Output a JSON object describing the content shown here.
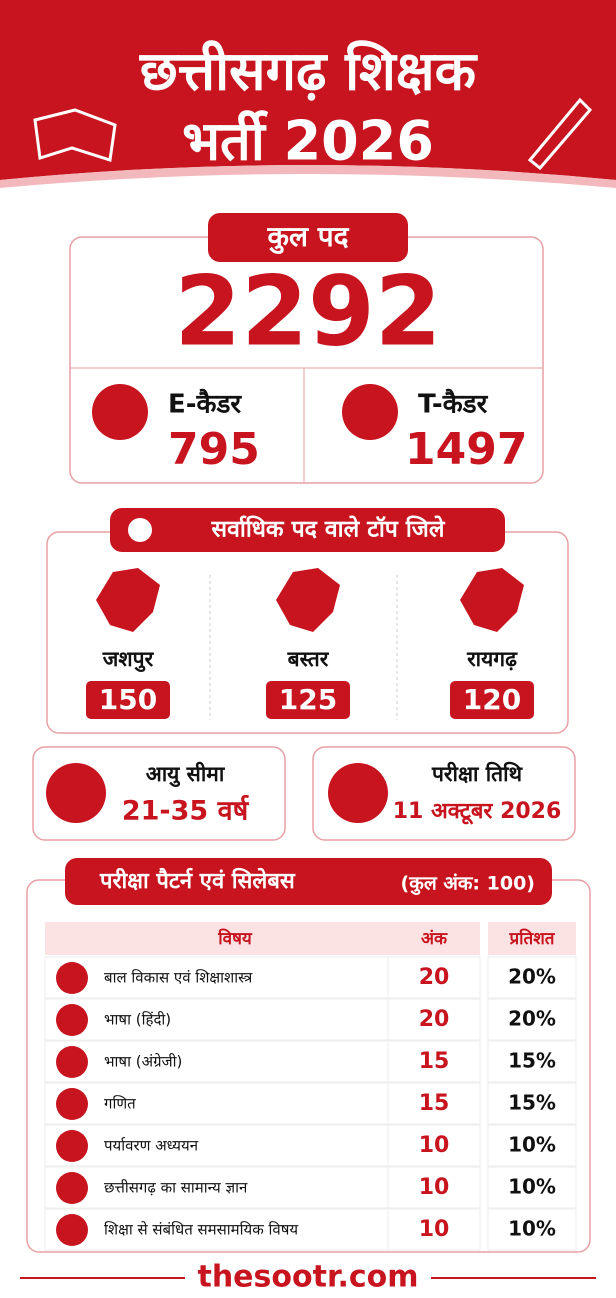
{
  "header": {
    "title_line1": "छत्तीसगढ़ शिक्षक",
    "title_line2": "भर्ती 2026"
  },
  "total": {
    "label": "कुल पद",
    "value": "2292",
    "cadres": [
      {
        "name": "E-कैडर",
        "value": "795"
      },
      {
        "name": "T-कैडर",
        "value": "1497"
      }
    ]
  },
  "districts": {
    "title": "सर्वाधिक पद वाले टॉप जिले",
    "items": [
      {
        "name": "जशपुर",
        "value": "150"
      },
      {
        "name": "बस्तर",
        "value": "125"
      },
      {
        "name": "रायगढ़",
        "value": "120"
      }
    ]
  },
  "age": {
    "label": "आयु सीमा",
    "value": "21-35 वर्ष"
  },
  "exam_date": {
    "label": "परीक्षा तिथि",
    "value": "11 अक्टूबर 2026"
  },
  "syllabus": {
    "title": "परीक्षा पैटर्न एवं सिलेबस",
    "total_marks": "(कुल अंक: 100)",
    "headers": [
      "विषय",
      "अंक",
      "प्रतिशत"
    ],
    "rows": [
      [
        "बाल विकास एवं शिक्षाशास्त्र",
        "20",
        "20%"
      ],
      [
        "भाषा (हिंदी)",
        "20",
        "20%"
      ],
      [
        "भाषा (अंग्रेजी)",
        "15",
        "15%"
      ],
      [
        "गणित",
        "15",
        "15%"
      ],
      [
        "पर्यावरण अध्ययन",
        "10",
        "10%"
      ],
      [
        "छत्तीसगढ़ का सामान्य ज्ञान",
        "10",
        "10%"
      ],
      [
        "शिक्षा से संबंधित समसामयिक विषय",
        "10",
        "10%"
      ]
    ]
  },
  "footer": {
    "website": "thesootr.com"
  }
}
